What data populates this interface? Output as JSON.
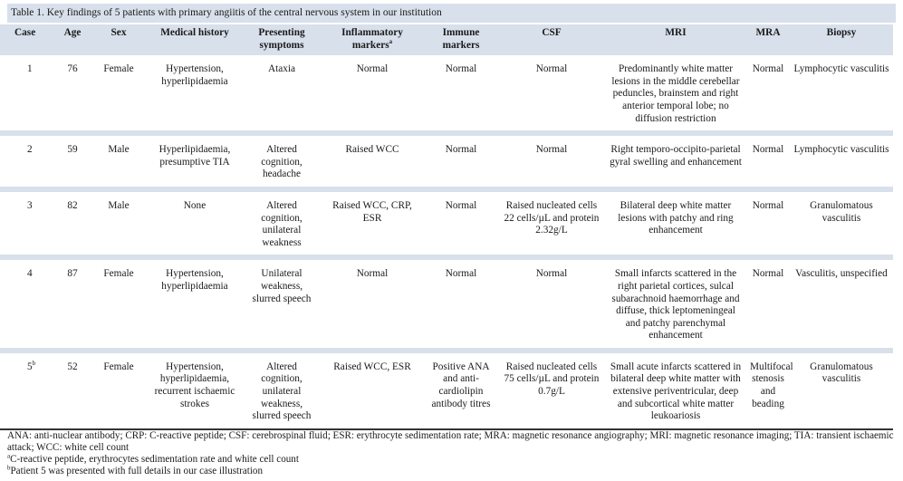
{
  "caption": "Table 1. Key findings of 5 patients with primary angiitis of the central nervous system in our institution",
  "headers": {
    "case": "Case",
    "age": "Age",
    "sex": "Sex",
    "history": "Medical history",
    "symptoms": "Presenting symptoms",
    "inflammatory": "Inflammatory markers",
    "inflammatory_sup": "a",
    "immune": "Immune markers",
    "csf": "CSF",
    "mri": "MRI",
    "mra": "MRA",
    "biopsy": "Biopsy"
  },
  "rows": [
    {
      "case": "1",
      "case_sup": "",
      "age": "76",
      "sex": "Female",
      "history": "Hypertension, hyperlipidaemia",
      "symptoms": "Ataxia",
      "inflammatory": "Normal",
      "immune": "Normal",
      "csf": "Normal",
      "mri": "Predominantly white matter lesions in the middle cerebellar peduncles, brainstem and right anterior temporal lobe; no diffusion restriction",
      "mra": "Normal",
      "biopsy": "Lymphocytic vasculitis"
    },
    {
      "case": "2",
      "case_sup": "",
      "age": "59",
      "sex": "Male",
      "history": "Hyperlipidaemia, presumptive TIA",
      "symptoms": "Altered cognition, headache",
      "inflammatory": "Raised WCC",
      "immune": "Normal",
      "csf": "Normal",
      "mri": "Right temporo-occipito-parietal gyral swelling and enhancement",
      "mra": "Normal",
      "biopsy": "Lymphocytic vasculitis"
    },
    {
      "case": "3",
      "case_sup": "",
      "age": "82",
      "sex": "Male",
      "history": "None",
      "symptoms": "Altered cognition, unilateral weakness",
      "inflammatory": "Raised WCC, CRP, ESR",
      "immune": "Normal",
      "csf": "Raised nucleated cells 22 cells/µL and protein 2.32g/L",
      "mri": "Bilateral deep white matter lesions with patchy and ring enhancement",
      "mra": "Normal",
      "biopsy": "Granulomatous vasculitis"
    },
    {
      "case": "4",
      "case_sup": "",
      "age": "87",
      "sex": "Female",
      "history": "Hypertension, hyperlipidaemia",
      "symptoms": "Unilateral weakness, slurred speech",
      "inflammatory": "Normal",
      "immune": "Normal",
      "csf": "Normal",
      "mri": "Small infarcts scattered in the right parietal cortices, sulcal subarachnoid haemorrhage and diffuse, thick leptomeningeal and patchy parenchymal enhancement",
      "mra": "Normal",
      "biopsy": "Vasculitis, unspecified"
    },
    {
      "case": "5",
      "case_sup": "b",
      "age": "52",
      "sex": "Female",
      "history": "Hypertension, hyperlipidaemia, recurrent ischaemic strokes",
      "symptoms": "Altered cognition, unilateral weakness, slurred speech",
      "inflammatory": "Raised WCC, ESR",
      "immune": "Positive ANA and anti-cardiolipin antibody titres",
      "csf": "Raised nucleated cells 75 cells/µL and protein 0.7g/L",
      "mri": "Small acute infarcts scattered in bilateral deep white matter with extensive periventricular, deep and subcortical white matter leukoariosis",
      "mra": "Multifocal stenosis and beading",
      "biopsy": "Granulomatous vasculitis"
    }
  ],
  "notes": {
    "abbreviations": "ANA: anti-nuclear antibody; CRP: C-reactive peptide; CSF: cerebrospinal fluid; ESR: erythrocyte sedimentation rate; MRA: magnetic resonance angiography; MRI: magnetic resonance imaging; TIA: transient ischaemic attack; WCC: white cell count",
    "a_marker": "a",
    "a_text": "C-reactive peptide, erythrocytes sedimentation rate and white cell count",
    "b_marker": "b",
    "b_text": "Patient 5 was presented with full details in our case illustration"
  }
}
